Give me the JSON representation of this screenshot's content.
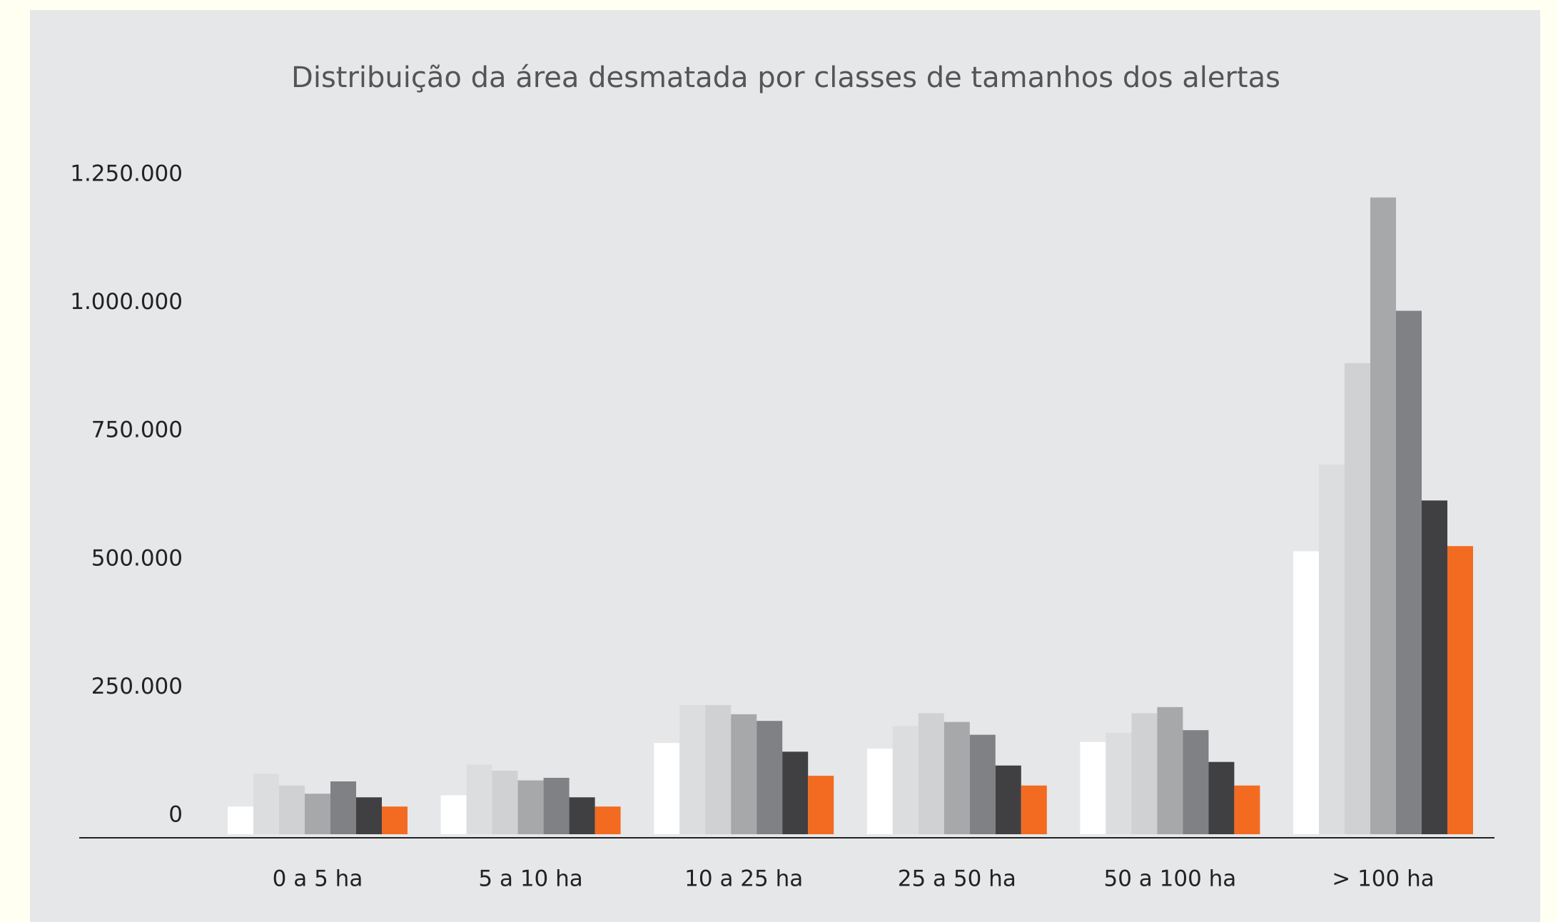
{
  "chart_data": {
    "type": "bar",
    "title": "Distribuição da área desmatada por classes de tamanhos dos alertas",
    "categories": [
      "0 a 5 ha",
      "5 a 10 ha",
      "10 a 25 ha",
      "25 a 50 ha",
      "50 a 100 ha",
      "> 100 ha"
    ],
    "series": [
      {
        "color": "#ffffff",
        "values": [
          54000,
          76000,
          178000,
          167000,
          180000,
          552000
        ]
      },
      {
        "color": "#dcdddf",
        "values": [
          118000,
          136000,
          252000,
          211000,
          198000,
          721000
        ]
      },
      {
        "color": "#d0d1d3",
        "values": [
          95000,
          124000,
          252000,
          236000,
          236000,
          919000
        ]
      },
      {
        "color": "#a7a8aa",
        "values": [
          79000,
          105000,
          234000,
          219000,
          248000,
          1242000
        ]
      },
      {
        "color": "#808184",
        "values": [
          103000,
          110000,
          221000,
          194000,
          203000,
          1021000
        ]
      },
      {
        "color": "#404042",
        "values": [
          72000,
          72000,
          161000,
          134000,
          141000,
          651000
        ]
      },
      {
        "color": "#f26b21",
        "values": [
          54000,
          54000,
          114000,
          95000,
          95000,
          562000
        ]
      }
    ],
    "ylim": [
      0,
      1250000
    ],
    "yticks": [
      0,
      {
        "value": 250000,
        "label": "250.000"
      },
      {
        "value": 500000,
        "label": "500.000"
      },
      {
        "value": 750000,
        "label": "750.000"
      },
      {
        "value": 1000000,
        "label": "1.000.000"
      },
      {
        "value": 1250000,
        "label": "1.250.000"
      }
    ],
    "grid": false
  }
}
